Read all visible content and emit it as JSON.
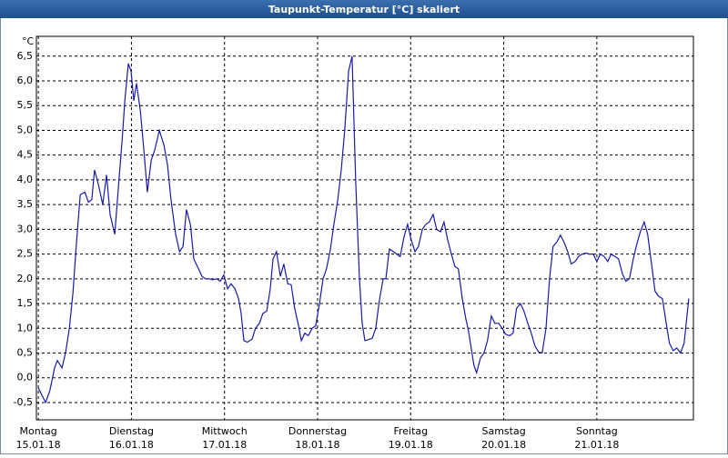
{
  "chart_data": {
    "type": "line",
    "title": "Taupunkt-Temperatur [°C] skaliert",
    "y_unit": "°C",
    "color": "#1a1aa6",
    "grid": true,
    "xlim": [
      -0.5,
      168.9
    ],
    "ylim": [
      -0.85,
      6.9
    ],
    "xticks": [
      {
        "value": 0,
        "label": "Montag"
      },
      {
        "value": 24,
        "label": "Dienstag"
      },
      {
        "value": 48,
        "label": "Mittwoch"
      },
      {
        "value": 72,
        "label": "Donnerstag"
      },
      {
        "value": 96,
        "label": "Freitag"
      },
      {
        "value": 120,
        "label": "Samstag"
      },
      {
        "value": 144,
        "label": "Sonntag"
      }
    ],
    "xtick_dates": [
      "15.01.18",
      "16.01.18",
      "17.01.18",
      "18.01.18",
      "19.01.18",
      "20.01.18",
      "21.01.18"
    ],
    "yticks": [
      {
        "value": -0.5,
        "label": "-0,5"
      },
      {
        "value": 0,
        "label": "0,0"
      },
      {
        "value": 0.5,
        "label": "0,5"
      },
      {
        "value": 1,
        "label": "1,0"
      },
      {
        "value": 1.5,
        "label": "1,5"
      },
      {
        "value": 2,
        "label": "2,0"
      },
      {
        "value": 2.5,
        "label": "2,5"
      },
      {
        "value": 3,
        "label": "3,0"
      },
      {
        "value": 3.5,
        "label": "3,5"
      },
      {
        "value": 4,
        "label": "4,0"
      },
      {
        "value": 4.5,
        "label": "4,5"
      },
      {
        "value": 5,
        "label": "5,0"
      },
      {
        "value": 5.5,
        "label": "5,5"
      },
      {
        "value": 6,
        "label": "6,0"
      },
      {
        "value": 6.5,
        "label": "6,5"
      }
    ],
    "x": [
      0,
      0.9,
      1.9,
      3.0,
      4.2,
      4.9,
      6.1,
      7.0,
      8.0,
      8.9,
      9.8,
      10.8,
      12.0,
      12.9,
      13.8,
      14.5,
      15.5,
      16.6,
      17.6,
      18.5,
      19.7,
      20.6,
      21.6,
      22.3,
      23.2,
      23.9,
      24.6,
      25.3,
      26.3,
      27.2,
      28.1,
      29.1,
      30.0,
      31.2,
      32.4,
      33.3,
      34.2,
      35.4,
      36.4,
      37.3,
      38.2,
      39.2,
      40.1,
      41.3,
      42.2,
      43.1,
      44.1,
      45.0,
      46.0,
      46.9,
      47.8,
      48.8,
      49.7,
      50.7,
      51.6,
      52.3,
      53.0,
      53.9,
      55.1,
      56.0,
      57.0,
      57.9,
      58.9,
      59.8,
      60.5,
      61.4,
      62.4,
      63.3,
      64.3,
      65.2,
      66.1,
      67.1,
      67.8,
      68.7,
      69.6,
      70.6,
      71.5,
      72.5,
      73.4,
      74.3,
      75.3,
      76.2,
      77.2,
      78.1,
      79.0,
      80.0,
      80.9,
      81.8,
      82.8,
      83.5,
      84.2,
      85.1,
      86.1,
      87.0,
      87.9,
      88.9,
      89.6,
      90.5,
      91.5,
      92.4,
      93.3,
      94.3,
      95.2,
      96.1,
      97.1,
      98.0,
      99.0,
      99.9,
      100.8,
      101.8,
      102.7,
      103.7,
      104.6,
      105.5,
      106.5,
      107.4,
      108.3,
      109.3,
      110.2,
      110.9,
      111.6,
      112.3,
      113.0,
      114.0,
      114.9,
      115.8,
      116.8,
      117.7,
      118.7,
      119.6,
      120.5,
      121.5,
      122.4,
      123.3,
      124.3,
      125.2,
      126.2,
      127.1,
      128.0,
      129.0,
      129.9,
      130.9,
      131.8,
      132.7,
      133.7,
      134.6,
      135.5,
      136.5,
      137.4,
      138.4,
      139.3,
      140.2,
      141.2,
      142.1,
      143.1,
      144.0,
      144.9,
      145.9,
      146.8,
      147.7,
      148.7,
      149.6,
      150.6,
      151.5,
      152.4,
      153.4,
      154.3,
      155.2,
      156.2,
      157.1,
      158.1,
      159.0,
      159.9,
      160.9,
      161.8,
      162.7,
      163.7,
      164.6,
      165.6,
      166.5,
      167.7
    ],
    "values": [
      -0.2,
      -0.35,
      -0.5,
      -0.25,
      0.2,
      0.35,
      0.2,
      0.5,
      1.0,
      1.7,
      2.7,
      3.7,
      3.75,
      3.55,
      3.6,
      4.2,
      3.9,
      3.5,
      4.1,
      3.3,
      2.9,
      3.8,
      4.8,
      5.6,
      6.35,
      6.2,
      5.6,
      5.95,
      5.4,
      4.6,
      3.75,
      4.4,
      4.6,
      5.0,
      4.7,
      4.3,
      3.6,
      2.9,
      2.55,
      2.65,
      3.4,
      3.1,
      2.4,
      2.2,
      2.05,
      2.0,
      2.0,
      1.98,
      2.0,
      1.95,
      2.08,
      1.8,
      1.9,
      1.8,
      1.6,
      1.3,
      0.75,
      0.72,
      0.78,
      1.0,
      1.1,
      1.3,
      1.35,
      1.8,
      2.4,
      2.55,
      2.05,
      2.3,
      1.9,
      1.88,
      1.4,
      1.05,
      0.75,
      0.9,
      0.85,
      1.0,
      1.05,
      1.5,
      2.0,
      2.2,
      2.6,
      3.1,
      3.6,
      4.2,
      5.0,
      6.2,
      6.5,
      4.0,
      2.0,
      1.1,
      0.75,
      0.77,
      0.8,
      1.0,
      1.55,
      2.0,
      2.0,
      2.6,
      2.55,
      2.5,
      2.45,
      2.85,
      3.1,
      2.8,
      2.55,
      2.65,
      3.0,
      3.1,
      3.15,
      3.3,
      3.0,
      2.95,
      3.15,
      2.8,
      2.5,
      2.25,
      2.2,
      1.6,
      1.2,
      0.95,
      0.6,
      0.25,
      0.1,
      0.4,
      0.5,
      0.75,
      1.25,
      1.1,
      1.1,
      1.0,
      0.88,
      0.85,
      0.9,
      1.4,
      1.5,
      1.35,
      1.1,
      0.9,
      0.65,
      0.52,
      0.5,
      1.0,
      2.0,
      2.65,
      2.75,
      2.88,
      2.75,
      2.55,
      2.3,
      2.35,
      2.45,
      2.5,
      2.52,
      2.5,
      2.5,
      2.35,
      2.5,
      2.45,
      2.35,
      2.5,
      2.45,
      2.4,
      2.1,
      1.95,
      2.0,
      2.4,
      2.7,
      2.95,
      3.15,
      2.9,
      2.3,
      1.75,
      1.65,
      1.6,
      1.15,
      0.7,
      0.55,
      0.6,
      0.5,
      0.7,
      1.6
    ]
  }
}
